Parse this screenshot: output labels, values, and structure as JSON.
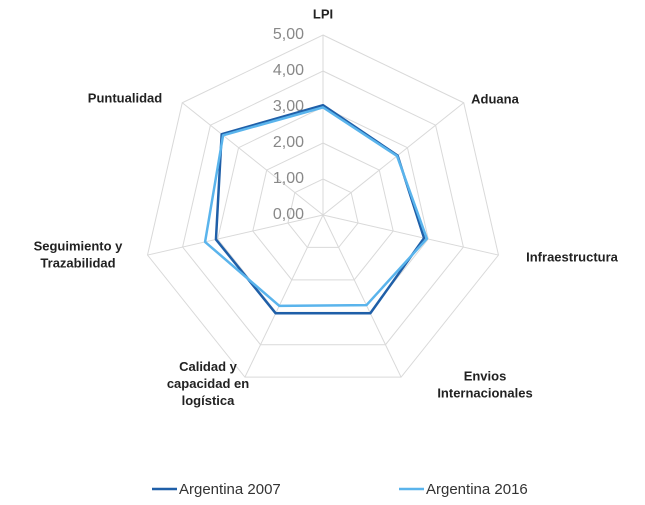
{
  "chart_data": {
    "type": "radar",
    "categories": [
      "LPI",
      "Aduana",
      "Infraestructura",
      "Envios\nInternacionales",
      "Calidad y\ncapacidad en\nlogística",
      "Seguimiento y\nTrazabilidad",
      "Puntualidad"
    ],
    "series": [
      {
        "name": "Argentina 2007",
        "color": "#1f5fa8",
        "values": [
          3.05,
          2.65,
          2.88,
          3.03,
          3.03,
          3.05,
          3.6
        ]
      },
      {
        "name": "Argentina 2016",
        "color": "#5ab4ec",
        "values": [
          2.99,
          2.63,
          2.96,
          2.78,
          2.8,
          3.36,
          3.55
        ]
      }
    ],
    "ylim": [
      0,
      5
    ],
    "yticks": [
      {
        "value": 0,
        "label": "0,00"
      },
      {
        "value": 1,
        "label": "1,00"
      },
      {
        "value": 2,
        "label": "2,00"
      },
      {
        "value": 3,
        "label": "3,00"
      },
      {
        "value": 4,
        "label": "4,00"
      },
      {
        "value": 5,
        "label": "5,00"
      }
    ],
    "grid": true,
    "legend": "bottom"
  }
}
